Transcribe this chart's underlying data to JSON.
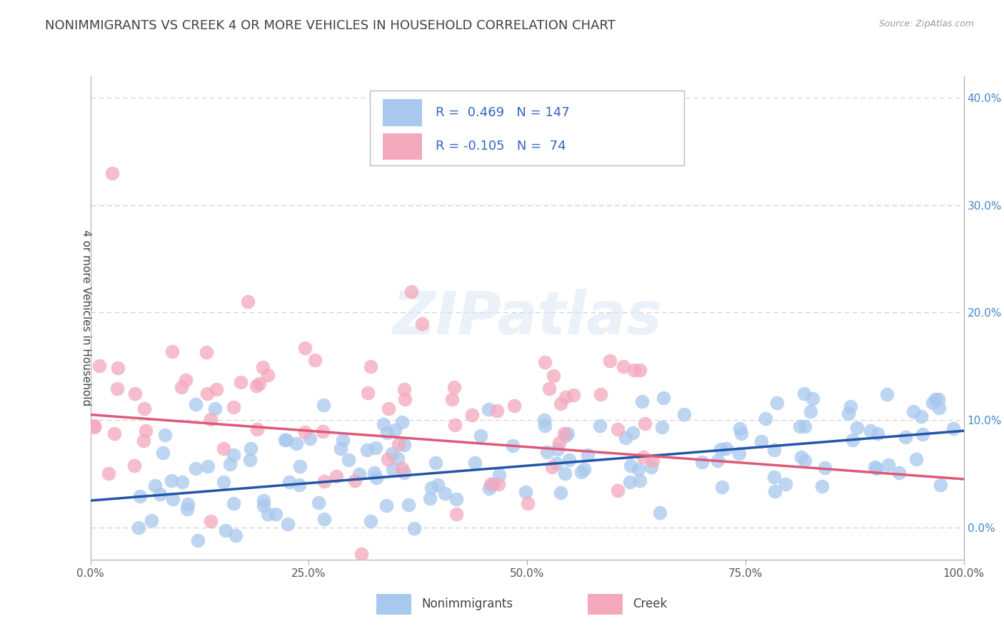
{
  "title": "NONIMMIGRANTS VS CREEK 4 OR MORE VEHICLES IN HOUSEHOLD CORRELATION CHART",
  "source_text": "Source: ZipAtlas.com",
  "ylabel": "4 or more Vehicles in Household",
  "xlim": [
    0,
    100
  ],
  "ylim": [
    -3,
    42
  ],
  "xticks": [
    0,
    25,
    50,
    75,
    100
  ],
  "xtick_labels": [
    "0.0%",
    "25.0%",
    "50.0%",
    "75.0%",
    "100.0%"
  ],
  "yticks": [
    0,
    10,
    20,
    30,
    40
  ],
  "ytick_labels": [
    "0.0%",
    "10.0%",
    "20.0%",
    "30.0%",
    "40.0%"
  ],
  "blue_R": 0.469,
  "blue_N": 147,
  "pink_R": -0.105,
  "pink_N": 74,
  "blue_color": "#A8C8EE",
  "pink_color": "#F4A8BC",
  "blue_line_color": "#2255AA",
  "pink_line_color": "#E05878",
  "legend_blue_label": "Nonimmigrants",
  "legend_pink_label": "Creek",
  "watermark": "ZIPatlas",
  "background_color": "#ffffff",
  "title_color": "#404040",
  "title_fontsize": 13,
  "grid_color": "#cccccc",
  "blue_scatter_seed": 42,
  "pink_scatter_seed": 99
}
